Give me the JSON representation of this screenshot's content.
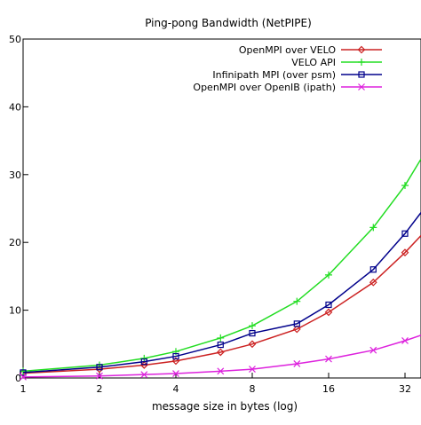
{
  "chart_data": {
    "type": "line",
    "title": "Ping-pong Bandwidth (NetPIPE)",
    "xlabel": "message size in bytes (log)",
    "ylabel": "",
    "x_scale": "log2",
    "xlim": [
      1,
      37
    ],
    "ylim": [
      0,
      50
    ],
    "x_ticks": [
      1,
      2,
      4,
      8,
      16,
      32
    ],
    "x_tick_labels": [
      "1",
      "2",
      "4",
      "8",
      "16",
      "32"
    ],
    "y_ticks": [
      0,
      10,
      20,
      30,
      40,
      50
    ],
    "y_tick_labels": [
      "0",
      "10",
      "20",
      "30",
      "40",
      "50"
    ],
    "grid": false,
    "legend_position": "top-right",
    "x": [
      1,
      2,
      3,
      4,
      6,
      8,
      12,
      16,
      24,
      32,
      37
    ],
    "series": [
      {
        "name": "OpenMPI over VELO",
        "color": "#cc2222",
        "marker": "diamond",
        "values": [
          0.7,
          1.3,
          1.9,
          2.5,
          3.8,
          5.0,
          7.2,
          9.7,
          14.1,
          18.5,
          21.0
        ]
      },
      {
        "name": "VELO API",
        "color": "#22dd22",
        "marker": "plus",
        "values": [
          1.0,
          1.9,
          2.9,
          3.9,
          5.9,
          7.7,
          11.3,
          15.2,
          22.2,
          28.4,
          32.3
        ]
      },
      {
        "name": "Infinipath MPI (over psm)",
        "color": "#00008b",
        "marker": "square",
        "values": [
          0.8,
          1.6,
          2.4,
          3.2,
          4.9,
          6.6,
          8.0,
          10.8,
          16.0,
          21.3,
          24.4
        ]
      },
      {
        "name": "OpenMPI over OpenIB (ipath)",
        "color": "#dd22dd",
        "marker": "cross",
        "values": [
          0.15,
          0.3,
          0.5,
          0.65,
          1.0,
          1.3,
          2.1,
          2.8,
          4.1,
          5.5,
          6.3
        ]
      }
    ]
  }
}
